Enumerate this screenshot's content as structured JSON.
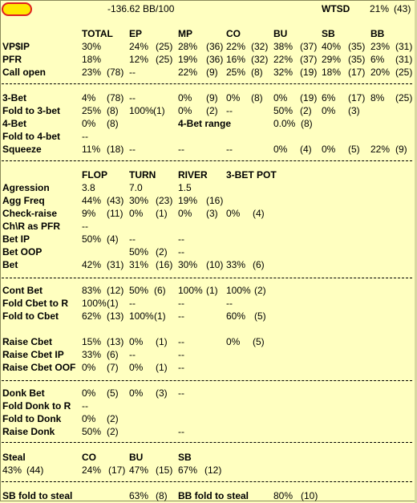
{
  "header": {
    "bb100": "-136.62 BB/100",
    "wtsd_label": "WTSD",
    "wtsd_value": "21%",
    "wtsd_count": "(43)"
  },
  "preflop": {
    "columns": [
      "TOTAL",
      "EP",
      "MP",
      "CO",
      "BU",
      "SB",
      "BB"
    ],
    "rows": [
      {
        "label": "VP$IP",
        "cells": [
          [
            "30%",
            ""
          ],
          [
            "24%",
            "(25)"
          ],
          [
            "28%",
            "(36)"
          ],
          [
            "22%",
            "(32)"
          ],
          [
            "38%",
            "(37)"
          ],
          [
            "40%",
            "(35)"
          ],
          [
            "23%",
            "(31)"
          ]
        ]
      },
      {
        "label": "PFR",
        "cells": [
          [
            "18%",
            ""
          ],
          [
            "12%",
            "(25)"
          ],
          [
            "19%",
            "(36)"
          ],
          [
            "16%",
            "(32)"
          ],
          [
            "22%",
            "(37)"
          ],
          [
            "29%",
            "(35)"
          ],
          [
            "6%",
            "(31)"
          ]
        ]
      },
      {
        "label": "Call open",
        "cells": [
          [
            "23%",
            "(78)"
          ],
          [
            "--",
            ""
          ],
          [
            "22%",
            "(9)"
          ],
          [
            "25%",
            "(8)"
          ],
          [
            "32%",
            "(19)"
          ],
          [
            "18%",
            "(17)"
          ],
          [
            "20%",
            "(25)"
          ]
        ]
      }
    ]
  },
  "threebet": {
    "rows": [
      {
        "label": "3-Bet",
        "cells": [
          [
            "4%",
            "(78)"
          ],
          [
            "--",
            ""
          ],
          [
            "0%",
            "(9)"
          ],
          [
            "0%",
            "(8)"
          ],
          [
            "0%",
            "(19)"
          ],
          [
            "6%",
            "(17)"
          ],
          [
            "8%",
            "(25)"
          ]
        ]
      },
      {
        "label": "Fold to 3-bet",
        "cells": [
          [
            "25%",
            "(8)"
          ],
          [
            "100%",
            "(1)"
          ],
          [
            "0%",
            "(2)"
          ],
          [
            "--",
            ""
          ],
          [
            "50%",
            "(2)"
          ],
          [
            "0%",
            "(3)"
          ],
          [
            "",
            ""
          ]
        ]
      },
      {
        "label": "4-Bet",
        "cells": [
          [
            "0%",
            "(8)"
          ],
          [
            "",
            ""
          ],
          [
            "",
            ""
          ],
          [
            "",
            ""
          ],
          [
            "",
            ""
          ],
          [
            "",
            ""
          ],
          [
            "",
            ""
          ]
        ]
      },
      {
        "label": "Fold to 4-bet",
        "cells": [
          [
            "--",
            ""
          ],
          [
            "",
            ""
          ],
          [
            "",
            ""
          ],
          [
            "",
            ""
          ],
          [
            "",
            ""
          ],
          [
            "",
            ""
          ],
          [
            "",
            ""
          ]
        ]
      },
      {
        "label": "Squeeze",
        "cells": [
          [
            "11%",
            "(18)"
          ],
          [
            "--",
            ""
          ],
          [
            "--",
            ""
          ],
          [
            "--",
            ""
          ],
          [
            "0%",
            "(4)"
          ],
          [
            "0%",
            "(5)"
          ],
          [
            "22%",
            "(9)"
          ]
        ]
      }
    ],
    "fourbet_range_label": "4-Bet range",
    "fourbet_range_value": "0.0%",
    "fourbet_range_count": "(8)"
  },
  "postflop": {
    "columns": [
      "FLOP",
      "TURN",
      "RIVER",
      "3-BET POT"
    ],
    "rows": [
      {
        "label": "Agression",
        "cells": [
          [
            "3.8",
            ""
          ],
          [
            "7.0",
            ""
          ],
          [
            "1.5",
            ""
          ],
          [
            "",
            ""
          ]
        ]
      },
      {
        "label": "Agg Freq",
        "cells": [
          [
            "44%",
            "(43)"
          ],
          [
            "30%",
            "(23)"
          ],
          [
            "19%",
            "(16)"
          ],
          [
            "",
            ""
          ]
        ]
      },
      {
        "label": "Check-raise",
        "cells": [
          [
            "9%",
            "(11)"
          ],
          [
            "0%",
            "(1)"
          ],
          [
            "0%",
            "(3)"
          ],
          [
            "0%",
            "(4)"
          ]
        ]
      },
      {
        "label": "Ch\\R as PFR",
        "cells": [
          [
            "--",
            ""
          ],
          [
            "",
            ""
          ],
          [
            "",
            ""
          ],
          [
            "",
            ""
          ]
        ]
      },
      {
        "label": "Bet IP",
        "cells": [
          [
            "50%",
            "(4)"
          ],
          [
            "--",
            ""
          ],
          [
            "--",
            ""
          ],
          [
            "",
            ""
          ]
        ]
      },
      {
        "label": "Bet OOP",
        "cells": [
          [
            "",
            ""
          ],
          [
            "50%",
            "(2)"
          ],
          [
            "--",
            ""
          ],
          [
            "",
            ""
          ]
        ]
      },
      {
        "label": "Bet",
        "cells": [
          [
            "42%",
            "(31)"
          ],
          [
            "31%",
            "(16)"
          ],
          [
            "30%",
            "(10)"
          ],
          [
            "33%",
            "(6)"
          ]
        ]
      }
    ]
  },
  "cbet": {
    "rows": [
      {
        "label": "Cont Bet",
        "cells": [
          [
            "83%",
            "(12)"
          ],
          [
            "50%",
            "(6)"
          ],
          [
            "100%",
            "(1)"
          ],
          [
            "100%",
            "(2)"
          ]
        ]
      },
      {
        "label": "Fold Cbet to R",
        "cells": [
          [
            "100%",
            "(1)"
          ],
          [
            "--",
            ""
          ],
          [
            "--",
            ""
          ],
          [
            "--",
            ""
          ]
        ]
      },
      {
        "label": "Fold to Cbet",
        "cells": [
          [
            "62%",
            "(13)"
          ],
          [
            "100%",
            "(1)"
          ],
          [
            "--",
            ""
          ],
          [
            "60%",
            "(5)"
          ]
        ]
      }
    ]
  },
  "raisecbet": {
    "rows": [
      {
        "label": "Raise Cbet",
        "cells": [
          [
            "15%",
            "(13)"
          ],
          [
            "0%",
            "(1)"
          ],
          [
            "--",
            ""
          ],
          [
            "0%",
            "(5)"
          ]
        ]
      },
      {
        "label": "Raise Cbet IP",
        "cells": [
          [
            "33%",
            "(6)"
          ],
          [
            "--",
            ""
          ],
          [
            "--",
            ""
          ],
          [
            "",
            ""
          ]
        ]
      },
      {
        "label": "Raise Cbet OOF",
        "cells": [
          [
            "0%",
            "(7)"
          ],
          [
            "0%",
            "(1)"
          ],
          [
            "--",
            ""
          ],
          [
            "",
            ""
          ]
        ]
      }
    ]
  },
  "donk": {
    "rows": [
      {
        "label": "Donk Bet",
        "cells": [
          [
            "0%",
            "(5)"
          ],
          [
            "0%",
            "(3)"
          ],
          [
            "--",
            ""
          ],
          [
            "",
            ""
          ]
        ]
      },
      {
        "label": "Fold Donk to R",
        "cells": [
          [
            "--",
            ""
          ],
          [
            "",
            ""
          ],
          [
            "",
            ""
          ],
          [
            "",
            ""
          ]
        ]
      },
      {
        "label": "Fold to Donk",
        "cells": [
          [
            "0%",
            "(2)"
          ],
          [
            "",
            ""
          ],
          [
            "",
            ""
          ],
          [
            "",
            ""
          ]
        ]
      },
      {
        "label": "Raise Donk",
        "cells": [
          [
            "50%",
            "(2)"
          ],
          [
            "",
            ""
          ],
          [
            "--",
            ""
          ],
          [
            "",
            ""
          ]
        ]
      }
    ]
  },
  "steal": {
    "label": "Steal",
    "total": "43%",
    "total_count": "(44)",
    "columns": [
      "CO",
      "BU",
      "SB"
    ],
    "cells": [
      [
        "24%",
        "(17)"
      ],
      [
        "47%",
        "(15)"
      ],
      [
        "67%",
        "(12)"
      ]
    ]
  },
  "footer": {
    "sb_label": "SB fold to steal",
    "sb_value": "63%",
    "sb_count": "(8)",
    "bb_label": "BB fold to steal",
    "bb_value": "80%",
    "bb_count": "(10)"
  }
}
